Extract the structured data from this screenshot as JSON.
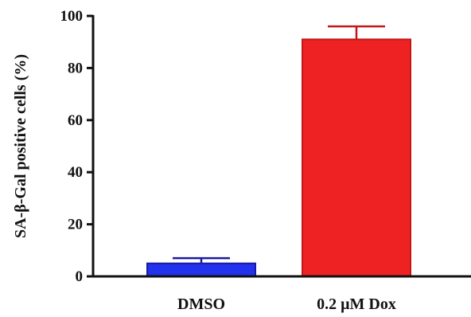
{
  "chart_data": {
    "type": "bar",
    "categories": [
      "DMSO",
      "0.2 μM Dox"
    ],
    "values": [
      5,
      91
    ],
    "errors": [
      2,
      5
    ],
    "colors": [
      "#2233ee",
      "#ee2222"
    ],
    "edge_colors": [
      "#1a1aa0",
      "#c01818"
    ],
    "ylabel": "SA-β-Gal positive cells (%)",
    "ylim": [
      0,
      100
    ],
    "yticks": [
      "0",
      "20",
      "40",
      "60",
      "80",
      "100"
    ],
    "grid": false
  }
}
